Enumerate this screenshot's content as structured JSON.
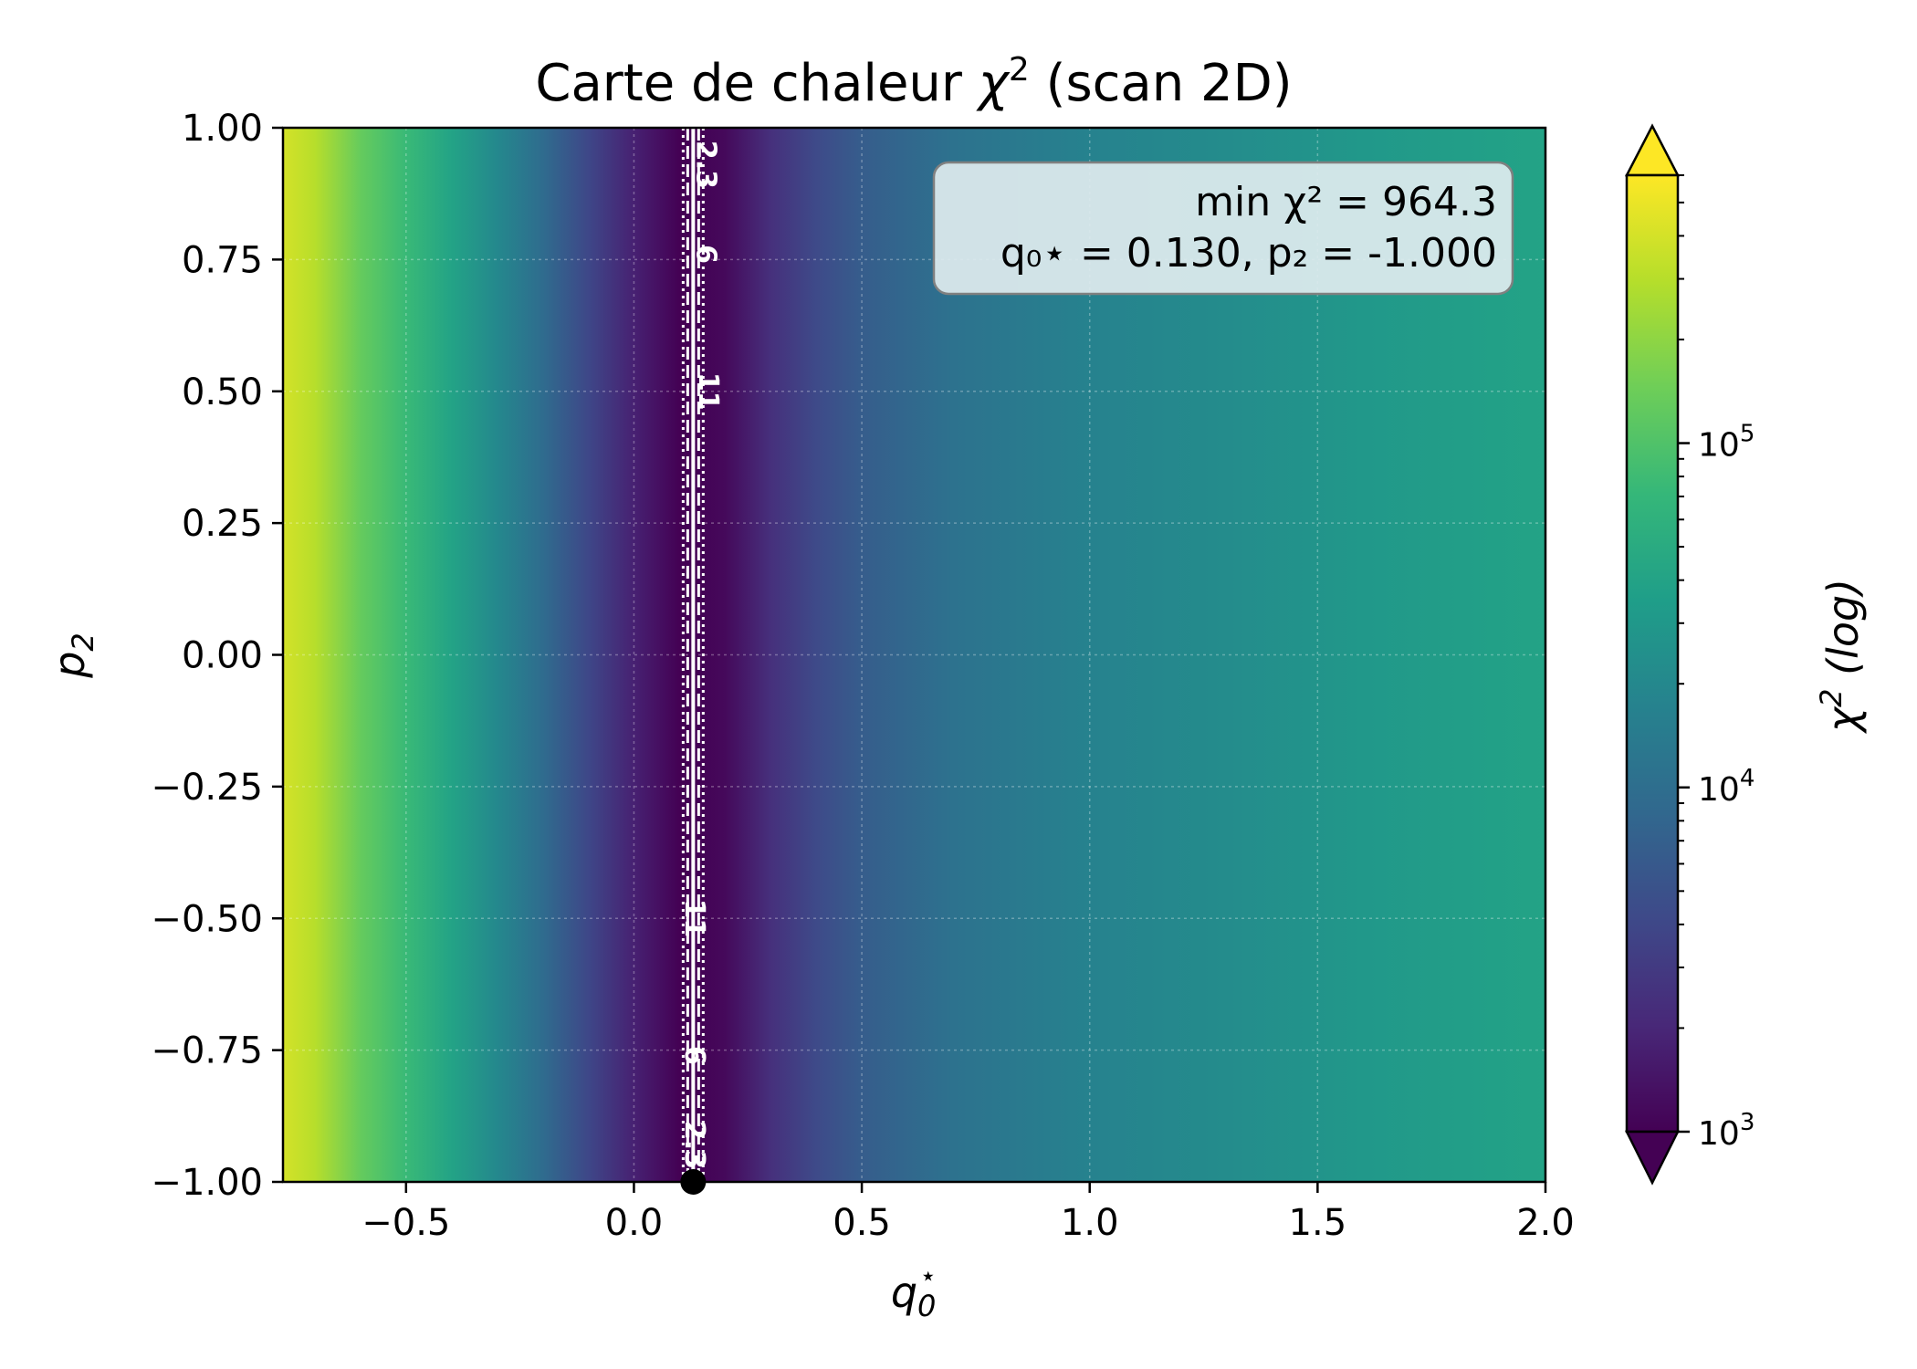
{
  "chart_data": {
    "type": "heatmap",
    "title_text": "Carte de chaleur ",
    "title_math": "χ",
    "title_sup": "2",
    "title_tail": " (scan 2D)",
    "xlabel": "q",
    "xlabel_sub": "0",
    "xlabel_sup": "⋆",
    "ylabel": "p",
    "ylabel_sub": "2",
    "xlim": [
      -0.77,
      2.0
    ],
    "ylim": [
      -1.0,
      1.0
    ],
    "x_ticks": [
      -0.5,
      0.0,
      0.5,
      1.0,
      1.5,
      2.0
    ],
    "x_tick_labels": [
      "−0.5",
      "0.0",
      "0.5",
      "1.0",
      "1.5",
      "2.0"
    ],
    "y_ticks": [
      1.0,
      0.75,
      0.5,
      0.25,
      0.0,
      -0.25,
      -0.5,
      -0.75,
      -1.0
    ],
    "y_tick_labels": [
      "1.00",
      "0.75",
      "0.50",
      "0.25",
      "0.00",
      "−0.25",
      "−0.50",
      "−0.75",
      "−1.00"
    ],
    "grid": true,
    "colormap": "viridis",
    "colormap_stops": [
      "#440154",
      "#482878",
      "#3e4989",
      "#31688e",
      "#26828e",
      "#1f9e89",
      "#35b779",
      "#6ece58",
      "#b5de2b",
      "#fde725"
    ],
    "colorbar": {
      "label": "χ",
      "label_sup": "2",
      "label_tail": " (log)",
      "scale": "log",
      "range": [
        1000,
        600000
      ],
      "major_ticks": [
        1000,
        10000,
        100000
      ],
      "major_tick_base": "10",
      "major_tick_exps": [
        "3",
        "4",
        "5"
      ],
      "extend": "both"
    },
    "profile_chi2": [
      {
        "x": -0.77,
        "chi2": 400000
      },
      {
        "x": -0.7,
        "chi2": 300000
      },
      {
        "x": -0.6,
        "chi2": 130000
      },
      {
        "x": -0.5,
        "chi2": 75000
      },
      {
        "x": -0.4,
        "chi2": 40000
      },
      {
        "x": -0.3,
        "chi2": 20000
      },
      {
        "x": -0.2,
        "chi2": 9500
      },
      {
        "x": -0.1,
        "chi2": 4000
      },
      {
        "x": 0.0,
        "chi2": 1800
      },
      {
        "x": 0.1,
        "chi2": 1000
      },
      {
        "x": 0.13,
        "chi2": 964.3
      },
      {
        "x": 0.2,
        "chi2": 1150
      },
      {
        "x": 0.3,
        "chi2": 2400
      },
      {
        "x": 0.4,
        "chi2": 4200
      },
      {
        "x": 0.5,
        "chi2": 6500
      },
      {
        "x": 0.7,
        "chi2": 11000
      },
      {
        "x": 1.0,
        "chi2": 17000
      },
      {
        "x": 1.3,
        "chi2": 22000
      },
      {
        "x": 1.6,
        "chi2": 30000
      },
      {
        "x": 2.0,
        "chi2": 40000
      }
    ],
    "minimum": {
      "q0": 0.13,
      "p2": -1.0,
      "chi2": 964.3
    },
    "contour_lines": [
      {
        "x": 0.13,
        "style": "solid"
      },
      {
        "x": 0.118,
        "style": "dashed"
      },
      {
        "x": 0.142,
        "style": "dashed"
      },
      {
        "x": 0.108,
        "style": "dotted"
      },
      {
        "x": 0.152,
        "style": "dotted"
      }
    ],
    "contour_labels": [
      {
        "text": "2.3",
        "x": 0.155,
        "y": 0.93
      },
      {
        "text": "6",
        "x": 0.155,
        "y": 0.76
      },
      {
        "text": "11",
        "x": 0.16,
        "y": 0.5
      },
      {
        "text": "11",
        "x": 0.13,
        "y": -0.5
      },
      {
        "text": "6",
        "x": 0.13,
        "y": -0.76
      },
      {
        "text": "2.3",
        "x": 0.13,
        "y": -0.93
      }
    ],
    "annotation": {
      "line1": "min χ² = 964.3",
      "line2": "q₀⋆ = 0.130, p₂ = -1.000",
      "position": "top-right"
    }
  }
}
